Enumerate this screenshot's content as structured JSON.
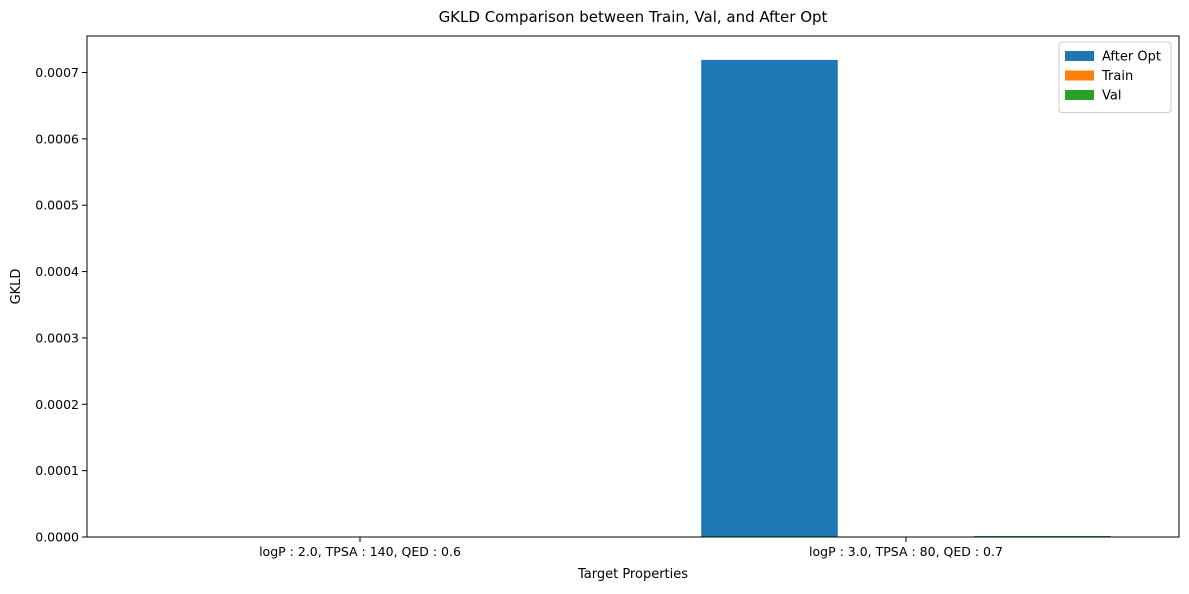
{
  "chart_data": {
    "type": "bar",
    "title": "GKLD Comparison between Train, Val, and After Opt",
    "xlabel": "Target Properties",
    "ylabel": "GKLD",
    "categories": [
      "logP : 2.0, TPSA : 140, QED : 0.6",
      "logP : 3.0, TPSA : 80, QED : 0.7"
    ],
    "series": [
      {
        "name": "After Opt",
        "color": "#1f77b4",
        "values": [
          0.0,
          0.000719
        ]
      },
      {
        "name": "Train",
        "color": "#ff7f0e",
        "values": [
          0.0,
          0.0
        ]
      },
      {
        "name": "Val",
        "color": "#2ca02c",
        "values": [
          0.0,
          1.5e-06
        ]
      }
    ],
    "ylim": [
      0,
      0.000755
    ],
    "yticks": [
      0,
      0.0001,
      0.0002,
      0.0003,
      0.0004,
      0.0005,
      0.0006,
      0.0007
    ],
    "ytick_labels": [
      "0.0000",
      "0.0001",
      "0.0002",
      "0.0003",
      "0.0004",
      "0.0005",
      "0.0006",
      "0.0007"
    ],
    "grid": false,
    "legend_position": "top-right"
  }
}
